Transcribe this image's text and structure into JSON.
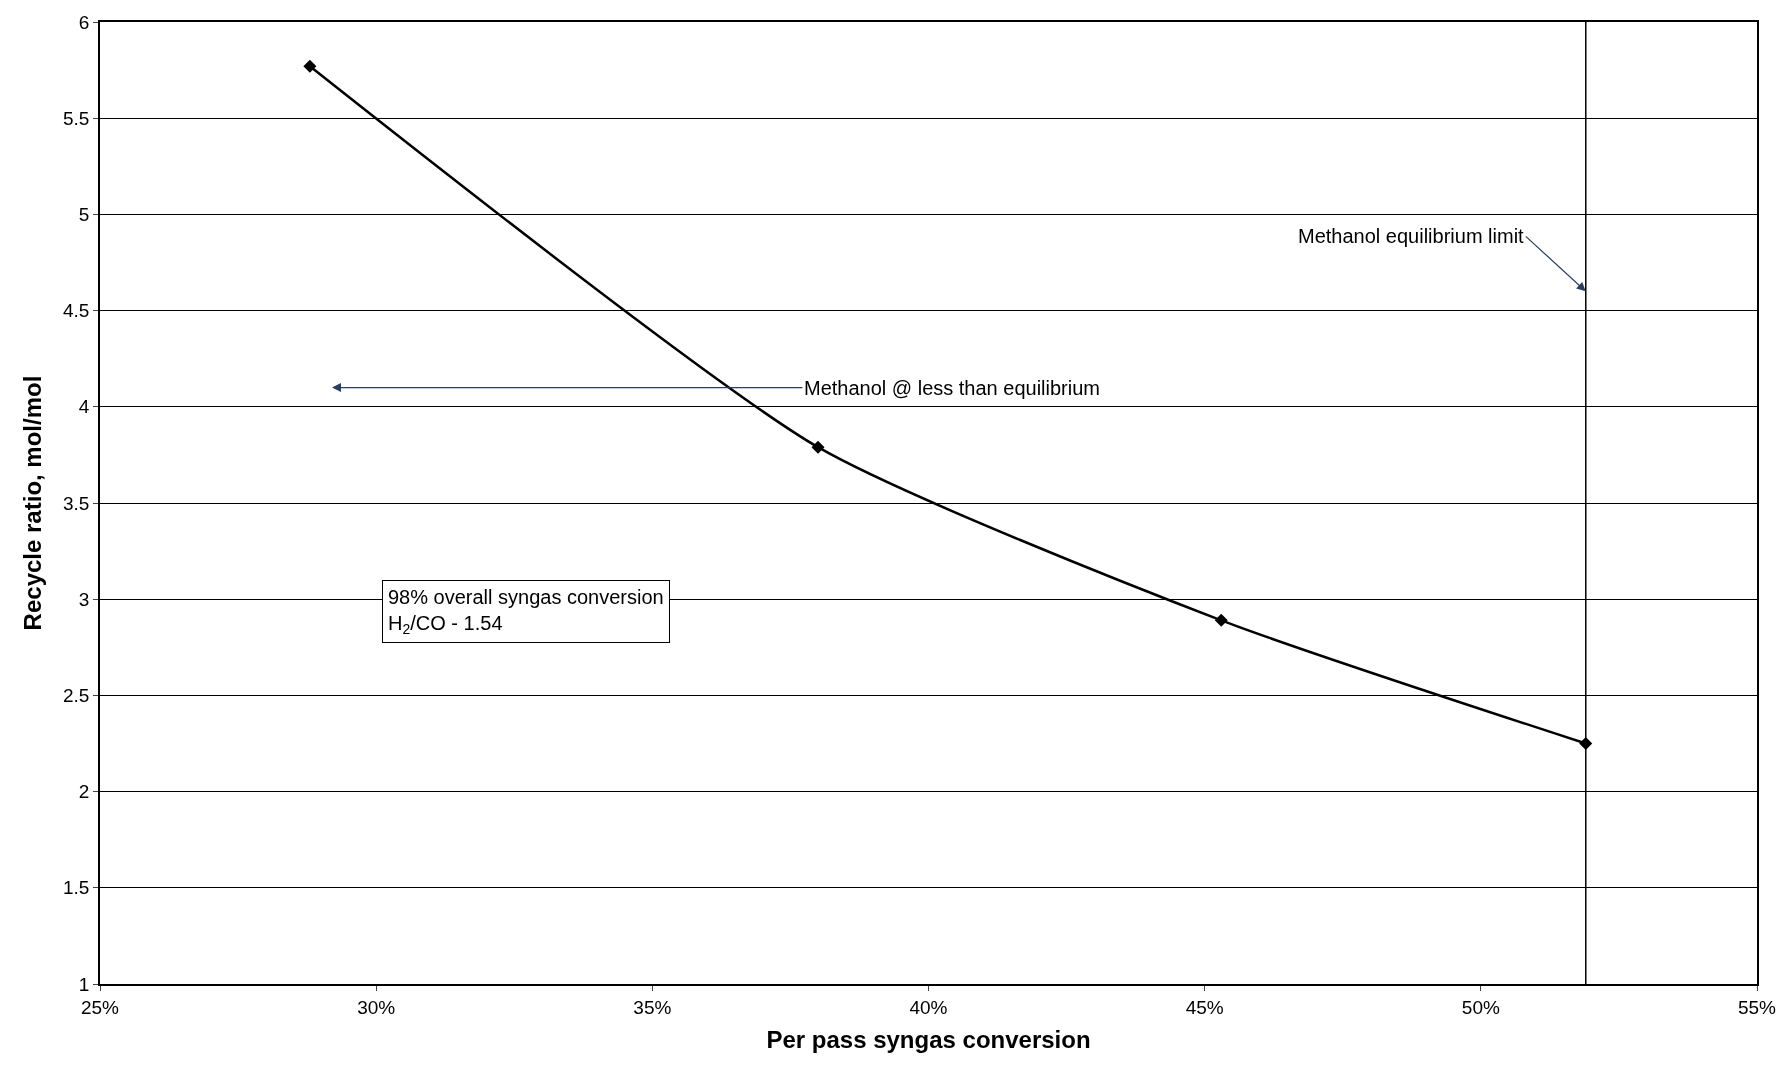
{
  "chart_data": {
    "type": "line",
    "xlabel": "Per pass syngas conversion",
    "ylabel": "Recycle ratio, mol/mol",
    "x": [
      28.8,
      38.0,
      45.3,
      51.9
    ],
    "series": [
      {
        "color": "#000000",
        "values": [
          5.77,
          3.79,
          2.89,
          2.25
        ]
      }
    ],
    "marker": "diamond",
    "line_style": "solid",
    "grid": "y",
    "legend": false,
    "xlim": [
      25,
      55
    ],
    "xticks": [
      {
        "value": 25,
        "label": "25%"
      },
      {
        "value": 30,
        "label": "30%"
      },
      {
        "value": 35,
        "label": "35%"
      },
      {
        "value": 40,
        "label": "40%"
      },
      {
        "value": 45,
        "label": "45%"
      },
      {
        "value": 50,
        "label": "50%"
      },
      {
        "value": 55,
        "label": "55%"
      }
    ],
    "ylim": [
      1,
      6
    ],
    "yticks": [
      1,
      1.5,
      2,
      2.5,
      3,
      3.5,
      4,
      4.5,
      5,
      5.5,
      6
    ],
    "ref_lines": [
      {
        "axis": "x",
        "value": 51.9,
        "label": "Methanol equilibrium limit",
        "color": "#000000",
        "line_style": "solid"
      }
    ],
    "annotations": [
      "Methanol @ less than equilibrium",
      "98% overall syngas conversion\nH$_{2}$/CO - 1.54"
    ]
  }
}
